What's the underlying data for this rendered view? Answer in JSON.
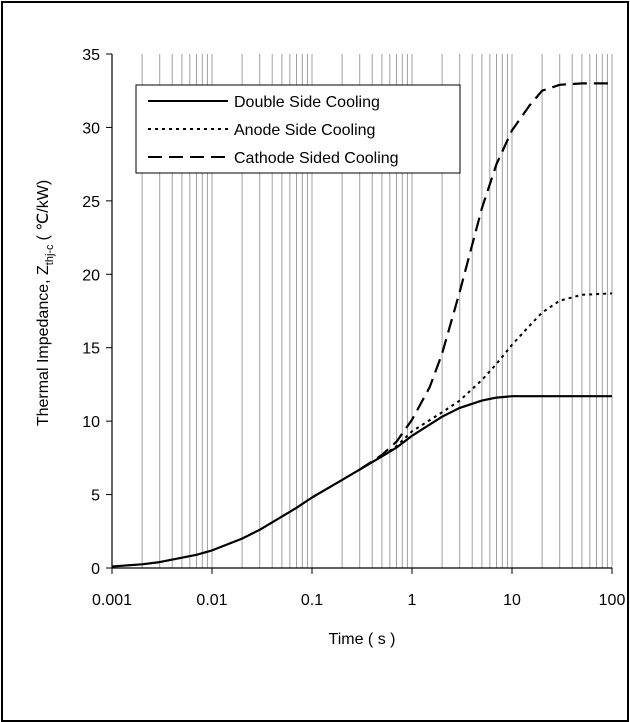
{
  "chart_data": {
    "type": "line",
    "title": "",
    "xlabel": "Time ( s )",
    "ylabel": {
      "main": "Thermal Impedance, Z",
      "subscript": "thj-c",
      "unit": "( ℃/kW)"
    },
    "x_scale": "log",
    "xlim": [
      0.001,
      100
    ],
    "ylim": [
      0,
      35
    ],
    "x_ticks": [
      "0.001",
      "0.01",
      "0.1",
      "1",
      "10",
      "100"
    ],
    "y_ticks": [
      "0",
      "5",
      "10",
      "15",
      "20",
      "25",
      "30",
      "35"
    ],
    "grid": {
      "vertical_minor": true,
      "horizontal": false
    },
    "legend_position": "top-left",
    "series": [
      {
        "name": "Double Side Cooling",
        "line_style": "solid",
        "x": [
          0.001,
          0.002,
          0.003,
          0.005,
          0.007,
          0.01,
          0.02,
          0.03,
          0.05,
          0.07,
          0.1,
          0.2,
          0.3,
          0.5,
          0.7,
          1,
          2,
          3,
          5,
          7,
          10,
          20,
          50,
          100
        ],
        "y": [
          0.1,
          0.25,
          0.4,
          0.7,
          0.9,
          1.2,
          2.0,
          2.6,
          3.5,
          4.1,
          4.8,
          6.0,
          6.7,
          7.6,
          8.2,
          9.0,
          10.3,
          10.9,
          11.4,
          11.6,
          11.7,
          11.7,
          11.7,
          11.7
        ]
      },
      {
        "name": "Anode Side Cooling",
        "line_style": "dotted",
        "x": [
          0.3,
          0.5,
          0.7,
          1,
          2,
          3,
          5,
          7,
          10,
          15,
          20,
          30,
          50,
          100
        ],
        "y": [
          6.7,
          7.6,
          8.3,
          9.3,
          10.6,
          11.4,
          12.8,
          13.9,
          15.2,
          16.5,
          17.4,
          18.2,
          18.6,
          18.7
        ]
      },
      {
        "name": "Cathode Sided Cooling",
        "line_style": "dashed",
        "x": [
          0.3,
          0.5,
          0.7,
          1,
          1.5,
          2,
          3,
          5,
          7,
          10,
          15,
          20,
          30,
          50,
          100
        ],
        "y": [
          6.7,
          7.7,
          8.6,
          10.1,
          12.3,
          14.6,
          18.8,
          24.5,
          27.5,
          29.8,
          31.5,
          32.5,
          32.9,
          33.0,
          33.0
        ]
      }
    ]
  },
  "colors": {
    "line": "#000000",
    "grid": "#a0a0a0",
    "axis": "#000000"
  }
}
